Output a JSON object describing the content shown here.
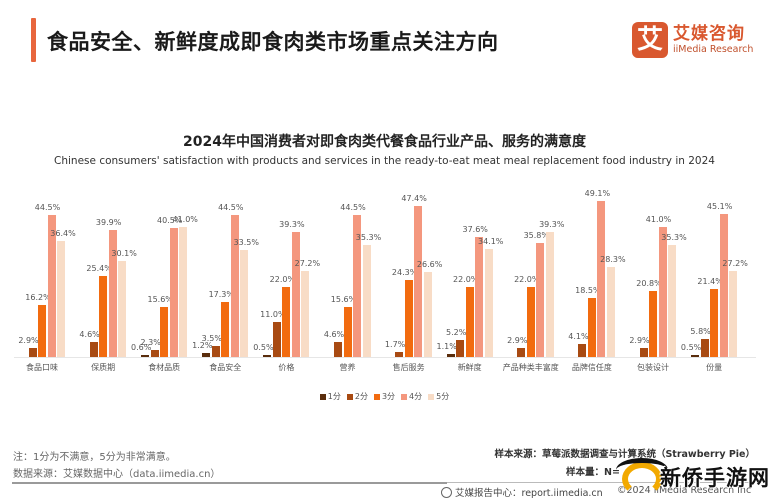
{
  "header": {
    "title": "食品安全、新鲜度成即食肉类市场重点关注方向",
    "accent_color": "#e8663d"
  },
  "logo": {
    "mark": "艾",
    "cn": "艾媒咨询",
    "en": "iiMedia Research",
    "color": "#d9582f"
  },
  "chart_data": {
    "type": "bar",
    "title": "2024年中国消费者对即食肉类代餐食品行业产品、服务的满意度",
    "subtitle": "Chinese consumers' satisfaction with products and services in the ready-to-eat meat meal replacement food industry in 2024",
    "xlabel": "",
    "ylabel": "",
    "ylim": [
      0,
      50
    ],
    "grid": false,
    "legend_position": "bottom",
    "categories": [
      "食品口味",
      "保质期",
      "食材品质",
      "食品安全",
      "价格",
      "营养",
      "售后服务",
      "新鲜度",
      "产品种类丰富度",
      "品牌信任度",
      "包装设计",
      "份量"
    ],
    "series": [
      {
        "name": "1分",
        "color": "#5a2d0c",
        "values": [
          0,
          0,
          0.6,
          1.2,
          0.5,
          0,
          0,
          1.1,
          0,
          0,
          0,
          0.5
        ]
      },
      {
        "name": "2分",
        "color": "#a84a12",
        "values": [
          2.9,
          4.6,
          2.3,
          3.5,
          11.0,
          4.6,
          1.7,
          5.2,
          2.9,
          4.1,
          2.9,
          5.8
        ]
      },
      {
        "name": "3分",
        "color": "#f26b0f",
        "values": [
          16.2,
          25.4,
          15.6,
          17.3,
          22.0,
          15.6,
          24.3,
          22.0,
          22.0,
          18.5,
          20.8,
          21.4
        ]
      },
      {
        "name": "4分",
        "color": "#f4977e",
        "values": [
          44.5,
          39.9,
          40.5,
          44.5,
          39.3,
          44.5,
          47.4,
          37.6,
          35.8,
          49.1,
          41.0,
          45.1
        ]
      },
      {
        "name": "5分",
        "color": "#f8dcc6",
        "values": [
          36.4,
          30.1,
          41.0,
          33.5,
          27.2,
          35.3,
          26.6,
          34.1,
          39.3,
          28.3,
          35.3,
          27.2
        ]
      }
    ]
  },
  "footer": {
    "note": "注：1分为不满意，5分为非常满意。",
    "source": "数据来源：艾媒数据中心（data.iimedia.cn）",
    "sample_source": "样本来源：草莓派数据调查与计算系统（Strawberry Pie）",
    "sample_size": "样本量：N=",
    "report_center": "艾媒报告中心：report.iimedia.cn",
    "copyright": "©2024 iiMedia Research Inc"
  },
  "watermark": {
    "text": "新侨手游网"
  }
}
